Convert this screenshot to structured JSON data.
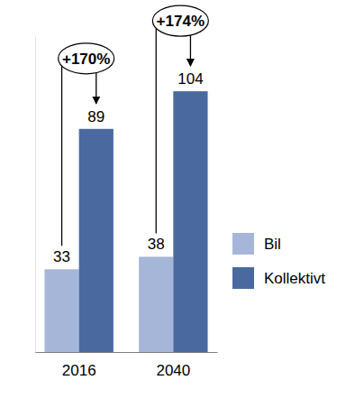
{
  "chart_data": {
    "type": "bar",
    "categories": [
      "2016",
      "2040"
    ],
    "series": [
      {
        "name": "Bil",
        "color": "#a5b6d8",
        "values": [
          33,
          38
        ]
      },
      {
        "name": "Kollektivt",
        "color": "#4a6a9f",
        "values": [
          89,
          104
        ]
      }
    ],
    "annotations": [
      "+170%",
      "+174%"
    ],
    "ylim": [
      0,
      126
    ],
    "tick_labels": "x",
    "data_labels": true,
    "legend": "right"
  }
}
